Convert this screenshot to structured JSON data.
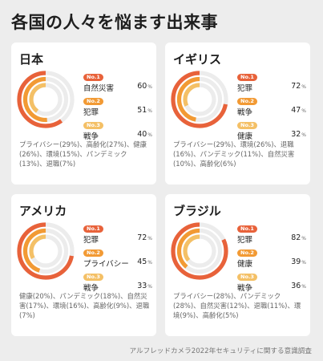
{
  "title": "各国の人々を悩ます出来事",
  "source": "アルフレッドカメラ2022年セキュリティに関する意識調査",
  "colors": {
    "rank1": "#e8623a",
    "rank2": "#f29a34",
    "rank3": "#f4c066",
    "track": "#ececec",
    "background": "#ededed"
  },
  "chart_data": [
    {
      "type": "radial-bar",
      "title": "日本",
      "max": 100,
      "ranks": [
        {
          "badge": "No.1",
          "label": "自然災害",
          "value": 60
        },
        {
          "badge": "No.2",
          "label": "犯罪",
          "value": 51
        },
        {
          "badge": "No.3",
          "label": "戦争",
          "value": 40
        }
      ],
      "others_text": "プライバシー(29%)、高齢化(27%)、健康(26%)、環境(15%)、パンデミック(13%)、退職(7%)"
    },
    {
      "type": "radial-bar",
      "title": "イギリス",
      "max": 100,
      "ranks": [
        {
          "badge": "No.1",
          "label": "犯罪",
          "value": 72
        },
        {
          "badge": "No.2",
          "label": "戦争",
          "value": 47
        },
        {
          "badge": "No.3",
          "label": "健康",
          "value": 32
        }
      ],
      "others_text": "プライバシー(29%)、環境(26%)、退職(16%)、パンデミック(11%)、自然災害(10%)、高齢化(6%)"
    },
    {
      "type": "radial-bar",
      "title": "アメリカ",
      "max": 100,
      "ranks": [
        {
          "badge": "No.1",
          "label": "犯罪",
          "value": 72
        },
        {
          "badge": "No.2",
          "label": "プライバシー",
          "value": 45
        },
        {
          "badge": "No.3",
          "label": "戦争",
          "value": 33
        }
      ],
      "others_text": "健康(20%)、パンデミック(18%)、自然災害(17%)、環境(16%)、高齢化(9%)、退職(7%)"
    },
    {
      "type": "radial-bar",
      "title": "ブラジル",
      "max": 100,
      "ranks": [
        {
          "badge": "No.1",
          "label": "犯罪",
          "value": 82
        },
        {
          "badge": "No.2",
          "label": "健康",
          "value": 39
        },
        {
          "badge": "No.3",
          "label": "戦争",
          "value": 36
        }
      ],
      "others_text": "プライバシー(28%)、パンデミック(28%)、自然災害(12%)、退職(11%)、環境(9%)、高齢化(5%)"
    }
  ],
  "unit": "%"
}
